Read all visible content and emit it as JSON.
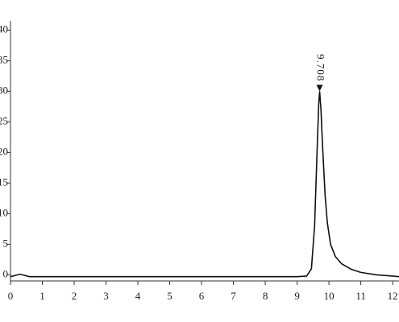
{
  "chart_data": {
    "type": "line",
    "x": [
      0,
      0.3,
      0.6,
      1,
      2,
      3,
      4,
      5,
      6,
      7,
      8,
      9,
      9.3,
      9.45,
      9.55,
      9.62,
      9.68,
      9.708,
      9.75,
      9.8,
      9.88,
      9.95,
      10.05,
      10.2,
      10.4,
      10.7,
      11,
      11.5,
      12,
      12.2
    ],
    "series": [
      {
        "color": "#111111",
        "values": [
          -0.3,
          0.1,
          -0.3,
          -0.3,
          -0.3,
          -0.3,
          -0.3,
          -0.3,
          -0.3,
          -0.3,
          -0.3,
          -0.3,
          -0.2,
          1,
          8,
          19,
          28,
          30,
          27,
          21,
          13,
          8.5,
          5,
          3,
          1.8,
          0.9,
          0.4,
          0,
          -0.2,
          -0.3
        ]
      }
    ],
    "annotations": [
      {
        "x": 9.708,
        "y": 30,
        "text": "9.708"
      }
    ],
    "xlim": [
      0,
      12.2
    ],
    "ylim": [
      -1,
      41.5
    ],
    "xticks": [
      0,
      1,
      2,
      3,
      4,
      5,
      6,
      7,
      8,
      9,
      10,
      11,
      12
    ],
    "yticks": [
      0,
      5,
      10,
      15,
      20,
      25,
      30,
      35,
      40
    ],
    "grid": false
  }
}
